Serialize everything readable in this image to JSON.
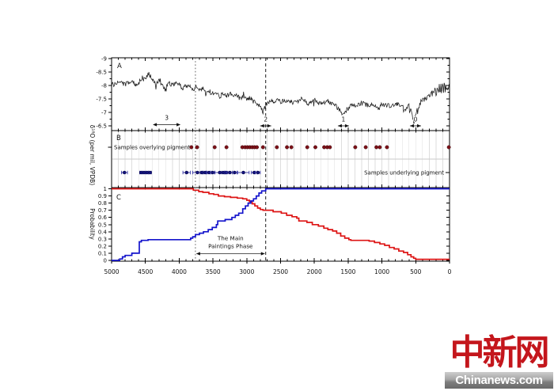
{
  "watermark": {
    "cn": "中新网",
    "en": "Chinanews.com",
    "red_color": "#c4161c"
  },
  "chart_data": {
    "type": [
      "line",
      "scatter",
      "step"
    ],
    "x_axis": {
      "range": [
        5000,
        0
      ],
      "reversed": true,
      "major_ticks": [
        5000,
        4500,
        4000,
        3500,
        3000,
        2500,
        2000,
        1500,
        1000,
        500,
        0
      ],
      "minor_step": 100
    },
    "dashed_lines": [
      {
        "x": 3760,
        "dash": "1.6,2.6",
        "color": "#6f6f6f",
        "width": 1.1
      },
      {
        "x": 2720,
        "dash": "4,3",
        "color": "#1a1a1a",
        "width": 1.0
      }
    ],
    "panels": [
      {
        "id": "A",
        "label": "A",
        "type": "line",
        "ylabel": "δ¹⁸O (per mil, VPDB)",
        "ylim": [
          -9,
          -6.5
        ],
        "yticks": [
          [
            -9,
            "-9"
          ],
          [
            -8.5,
            "-8.5"
          ],
          [
            -8,
            "-8"
          ],
          [
            -7.5,
            "-7.5"
          ],
          [
            -7,
            "-7"
          ],
          [
            -6.5,
            "-6.5"
          ]
        ],
        "line_color": "#1a1a1a",
        "noise_amp": 0.085,
        "seed": 13,
        "anchors": [
          [
            5000,
            -8.0
          ],
          [
            4900,
            -8.1
          ],
          [
            4800,
            -8.05
          ],
          [
            4700,
            -8.15
          ],
          [
            4620,
            -8.0
          ],
          [
            4550,
            -8.3
          ],
          [
            4500,
            -8.2
          ],
          [
            4450,
            -8.45
          ],
          [
            4400,
            -8.25
          ],
          [
            4350,
            -8.05
          ],
          [
            4300,
            -8.2
          ],
          [
            4250,
            -8.0
          ],
          [
            4200,
            -7.9
          ],
          [
            4150,
            -8.1
          ],
          [
            4100,
            -8.0
          ],
          [
            4050,
            -8.15
          ],
          [
            4000,
            -8.05
          ],
          [
            3950,
            -7.9
          ],
          [
            3900,
            -8.0
          ],
          [
            3850,
            -7.95
          ],
          [
            3800,
            -7.85
          ],
          [
            3750,
            -7.95
          ],
          [
            3700,
            -7.8
          ],
          [
            3650,
            -7.9
          ],
          [
            3600,
            -7.75
          ],
          [
            3550,
            -7.8
          ],
          [
            3500,
            -7.7
          ],
          [
            3450,
            -7.75
          ],
          [
            3400,
            -7.6
          ],
          [
            3350,
            -7.7
          ],
          [
            3300,
            -7.6
          ],
          [
            3250,
            -7.7
          ],
          [
            3200,
            -7.55
          ],
          [
            3150,
            -7.68
          ],
          [
            3100,
            -7.5
          ],
          [
            3050,
            -7.6
          ],
          [
            3000,
            -7.45
          ],
          [
            2950,
            -7.55
          ],
          [
            2900,
            -7.4
          ],
          [
            2850,
            -7.35
          ],
          [
            2800,
            -7.2
          ],
          [
            2760,
            -7.0
          ],
          [
            2740,
            -7.15
          ],
          [
            2700,
            -7.35
          ],
          [
            2650,
            -7.45
          ],
          [
            2600,
            -7.35
          ],
          [
            2550,
            -7.5
          ],
          [
            2500,
            -7.4
          ],
          [
            2400,
            -7.45
          ],
          [
            2300,
            -7.35
          ],
          [
            2200,
            -7.5
          ],
          [
            2100,
            -7.35
          ],
          [
            2000,
            -7.45
          ],
          [
            1900,
            -7.3
          ],
          [
            1800,
            -7.4
          ],
          [
            1700,
            -7.3
          ],
          [
            1650,
            -7.15
          ],
          [
            1600,
            -7.0
          ],
          [
            1560,
            -6.9
          ],
          [
            1520,
            -7.1
          ],
          [
            1450,
            -7.3
          ],
          [
            1400,
            -7.25
          ],
          [
            1300,
            -7.35
          ],
          [
            1200,
            -7.25
          ],
          [
            1100,
            -7.3
          ],
          [
            1050,
            -7.1
          ],
          [
            1000,
            -7.3
          ],
          [
            900,
            -7.25
          ],
          [
            800,
            -7.3
          ],
          [
            700,
            -7.25
          ],
          [
            650,
            -7.1
          ],
          [
            600,
            -7.25
          ],
          [
            560,
            -6.95
          ],
          [
            530,
            -6.62
          ],
          [
            500,
            -6.9
          ],
          [
            470,
            -7.15
          ],
          [
            440,
            -7.3
          ],
          [
            400,
            -7.45
          ],
          [
            350,
            -7.5
          ],
          [
            300,
            -7.6
          ],
          [
            250,
            -7.7
          ],
          [
            200,
            -7.75
          ],
          [
            150,
            -7.9
          ],
          [
            100,
            -8.0
          ],
          [
            50,
            -7.85
          ],
          [
            0,
            -8.05
          ]
        ],
        "events": [
          {
            "label": "3",
            "kind": "range",
            "x_start": 4390,
            "x_end": 3980
          },
          {
            "label": "2",
            "kind": "point",
            "x": 2720
          },
          {
            "label": "1",
            "kind": "point",
            "x": 1570
          },
          {
            "label": "0",
            "kind": "point",
            "x": 504
          }
        ]
      },
      {
        "id": "B",
        "label": "B",
        "type": "scatter",
        "gridline_color": "#dedede",
        "separator_color": "#c9c9c9",
        "series": [
          {
            "name": "Samples overlying pigment",
            "label_side": "left",
            "color": "#7d1118",
            "edge": "#3c0508",
            "bar_color": "#cc2a2a",
            "caps": false,
            "points": [
              [
                3820,
                15
              ],
              [
                3735,
                15
              ],
              [
                3475,
                20
              ],
              [
                3300,
                20
              ],
              [
                3065,
                25
              ],
              [
                3025,
                25
              ],
              [
                2990,
                25
              ],
              [
                2955,
                25
              ],
              [
                2920,
                25
              ],
              [
                2885,
                25
              ],
              [
                2850,
                25
              ],
              [
                2760,
                20
              ],
              [
                2555,
                20
              ],
              [
                2405,
                20
              ],
              [
                2340,
                20
              ],
              [
                2105,
                25
              ],
              [
                1985,
                25
              ],
              [
                1855,
                20
              ],
              [
                1810,
                20
              ],
              [
                1770,
                20
              ],
              [
                1395,
                20
              ],
              [
                1240,
                20
              ],
              [
                1082,
                18
              ],
              [
                1032,
                18
              ],
              [
                926,
                25
              ],
              [
                10,
                12
              ]
            ]
          },
          {
            "name": "Samples underlying pigment",
            "label_side": "right",
            "color": "#13137e",
            "edge": "#06063c",
            "bar_color": "#2a2aa0",
            "caps": true,
            "points": [
              [
                4810,
                45
              ],
              [
                4565,
                20
              ],
              [
                4520,
                20
              ],
              [
                4475,
                20
              ],
              [
                4430,
                20
              ],
              [
                3890,
                55
              ],
              [
                3730,
                70
              ],
              [
                3665,
                25
              ],
              [
                3615,
                25
              ],
              [
                3560,
                35
              ],
              [
                3505,
                35
              ],
              [
                3400,
                75
              ],
              [
                3350,
                25
              ],
              [
                3305,
                25
              ],
              [
                3250,
                55
              ],
              [
                3180,
                35
              ],
              [
                3050,
                85
              ],
              [
                2890,
                45
              ],
              [
                2835,
                35
              ]
            ]
          }
        ]
      },
      {
        "id": "C",
        "label": "C",
        "type": "step",
        "ylabel": "Probability",
        "ylim": [
          0,
          1
        ],
        "yticks": [
          [
            1,
            "1"
          ],
          [
            0.9,
            "0.9"
          ],
          [
            0.8,
            "0.8"
          ],
          [
            0.7,
            "0.7"
          ],
          [
            0.6,
            "0.6"
          ],
          [
            0.5,
            "0.5"
          ],
          [
            0.4,
            "0.4"
          ],
          [
            0.3,
            "0.3"
          ],
          [
            0.2,
            "0.2"
          ],
          [
            0.1,
            "0.1"
          ],
          [
            0,
            "0"
          ]
        ],
        "series": [
          {
            "color": "#dd1414",
            "steps": [
              [
                5000,
                1.0
              ],
              [
                3790,
                0.98
              ],
              [
                3710,
                0.96
              ],
              [
                3650,
                0.95
              ],
              [
                3560,
                0.93
              ],
              [
                3490,
                0.92
              ],
              [
                3420,
                0.9
              ],
              [
                3330,
                0.89
              ],
              [
                3240,
                0.88
              ],
              [
                3140,
                0.87
              ],
              [
                3060,
                0.86
              ],
              [
                3000,
                0.84
              ],
              [
                2960,
                0.82
              ],
              [
                2920,
                0.79
              ],
              [
                2880,
                0.76
              ],
              [
                2840,
                0.73
              ],
              [
                2800,
                0.71
              ],
              [
                2760,
                0.7
              ],
              [
                2610,
                0.68
              ],
              [
                2490,
                0.66
              ],
              [
                2410,
                0.63
              ],
              [
                2330,
                0.61
              ],
              [
                2260,
                0.59
              ],
              [
                2230,
                0.55
              ],
              [
                2110,
                0.53
              ],
              [
                2030,
                0.5
              ],
              [
                1940,
                0.48
              ],
              [
                1860,
                0.45
              ],
              [
                1800,
                0.43
              ],
              [
                1730,
                0.41
              ],
              [
                1670,
                0.38
              ],
              [
                1610,
                0.34
              ],
              [
                1550,
                0.31
              ],
              [
                1490,
                0.29
              ],
              [
                1460,
                0.28
              ],
              [
                1190,
                0.27
              ],
              [
                1110,
                0.25
              ],
              [
                1030,
                0.23
              ],
              [
                960,
                0.21
              ],
              [
                890,
                0.18
              ],
              [
                820,
                0.16
              ],
              [
                750,
                0.13
              ],
              [
                680,
                0.11
              ],
              [
                620,
                0.08
              ],
              [
                570,
                0.05
              ],
              [
                530,
                0.03
              ],
              [
                500,
                0.015
              ],
              [
                0,
                0.015
              ]
            ]
          },
          {
            "color": "#1414cc",
            "steps": [
              [
                5000,
                0
              ],
              [
                4880,
                0.02
              ],
              [
                4840,
                0.05
              ],
              [
                4800,
                0.07
              ],
              [
                4700,
                0.1
              ],
              [
                4590,
                0.26
              ],
              [
                4560,
                0.28
              ],
              [
                4460,
                0.29
              ],
              [
                3830,
                0.31
              ],
              [
                3800,
                0.33
              ],
              [
                3760,
                0.36
              ],
              [
                3700,
                0.38
              ],
              [
                3640,
                0.4
              ],
              [
                3570,
                0.43
              ],
              [
                3510,
                0.46
              ],
              [
                3450,
                0.5
              ],
              [
                3430,
                0.55
              ],
              [
                3320,
                0.57
              ],
              [
                3220,
                0.6
              ],
              [
                3170,
                0.63
              ],
              [
                3120,
                0.66
              ],
              [
                3060,
                0.72
              ],
              [
                3020,
                0.76
              ],
              [
                2980,
                0.8
              ],
              [
                2940,
                0.83
              ],
              [
                2900,
                0.86
              ],
              [
                2860,
                0.9
              ],
              [
                2820,
                0.94
              ],
              [
                2780,
                0.97
              ],
              [
                2720,
                1.0
              ],
              [
                0,
                1.0
              ]
            ]
          }
        ],
        "annotation": {
          "lines": [
            "The Main",
            "Paintings Phase"
          ],
          "x_start": 3760,
          "x_end": 2720
        }
      }
    ]
  }
}
